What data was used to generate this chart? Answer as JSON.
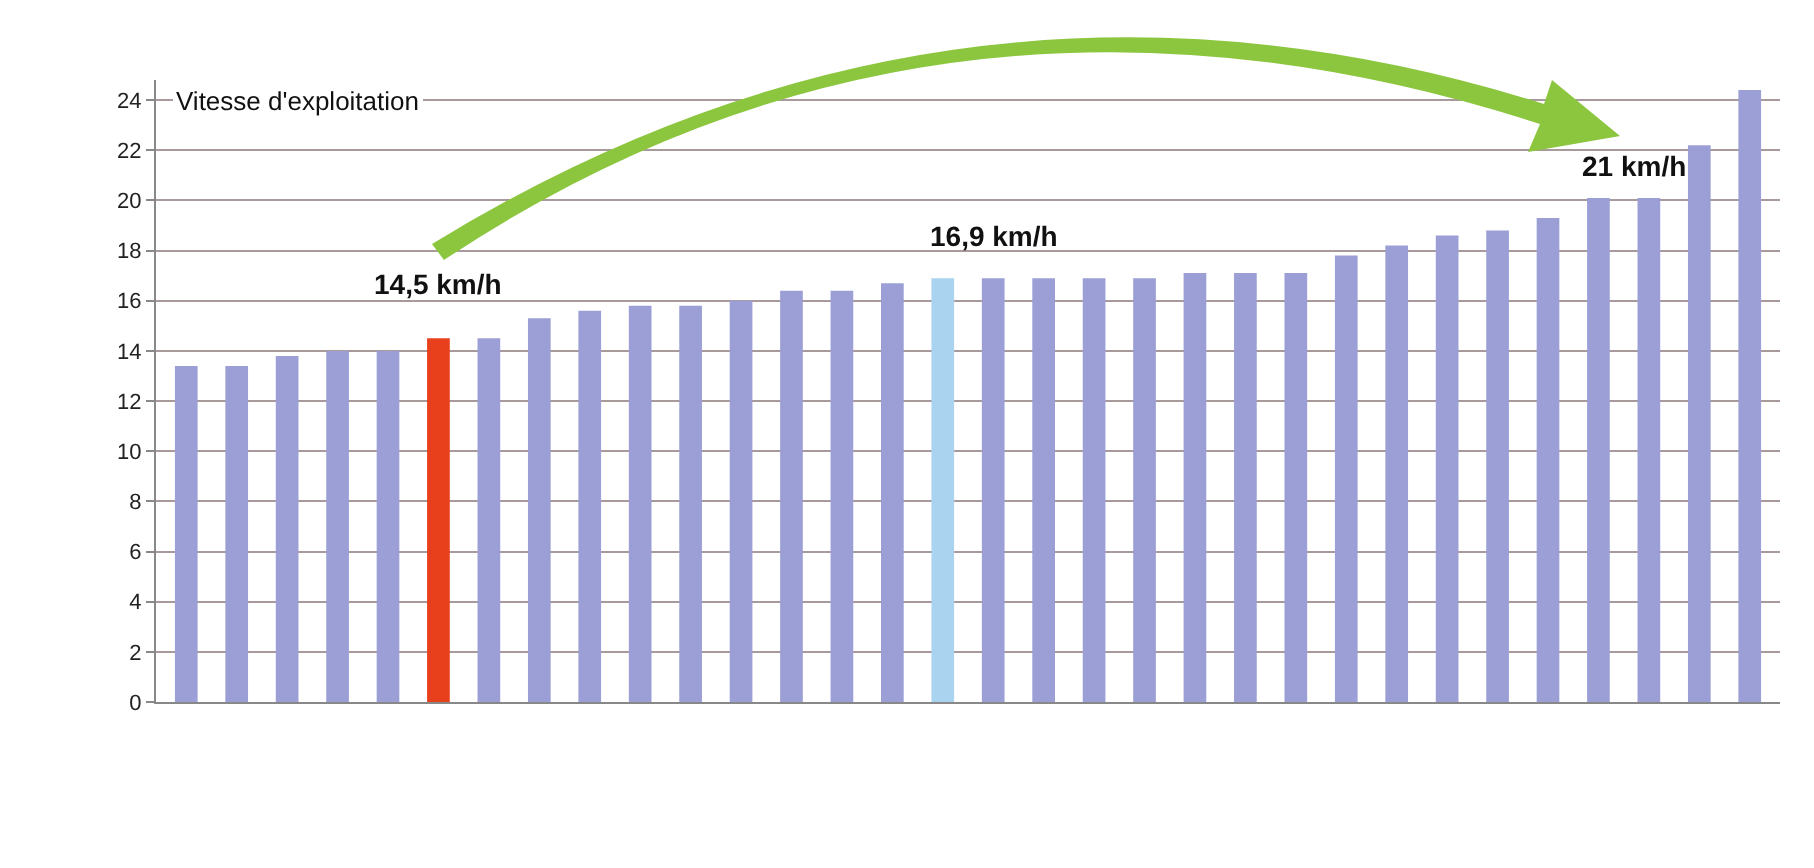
{
  "chart_data": {
    "type": "bar",
    "categories": [
      null,
      null,
      null,
      null,
      null,
      null,
      null,
      null,
      null,
      null,
      null,
      null,
      null,
      null,
      null,
      null,
      null,
      null,
      null,
      null,
      null,
      null,
      null,
      null,
      null,
      null,
      null,
      null,
      null,
      null,
      null,
      null
    ],
    "values": [
      13.4,
      13.4,
      13.8,
      14,
      14,
      14.5,
      14.5,
      15.3,
      15.6,
      15.8,
      15.8,
      16,
      16.4,
      16.4,
      16.7,
      16.9,
      16.9,
      16.9,
      16.9,
      16.9,
      17.1,
      17.1,
      17.1,
      17.8,
      18.2,
      18.6,
      18.8,
      19.3,
      20.1,
      20.1,
      22.2,
      24.4
    ],
    "colors": [
      "#9b9fd6",
      "#9b9fd6",
      "#9b9fd6",
      "#9b9fd6",
      "#9b9fd6",
      "#e8401c",
      "#9b9fd6",
      "#9b9fd6",
      "#9b9fd6",
      "#9b9fd6",
      "#9b9fd6",
      "#9b9fd6",
      "#9b9fd6",
      "#9b9fd6",
      "#9b9fd6",
      "#a9d3ef",
      "#9b9fd6",
      "#9b9fd6",
      "#9b9fd6",
      "#9b9fd6",
      "#9b9fd6",
      "#9b9fd6",
      "#9b9fd6",
      "#9b9fd6",
      "#9b9fd6",
      "#9b9fd6",
      "#9b9fd6",
      "#9b9fd6",
      "#9b9fd6",
      "#9b9fd6",
      "#9b9fd6",
      "#9b9fd6"
    ],
    "ylim": [
      0,
      24.8
    ],
    "yticks": [
      0,
      2,
      4,
      6,
      8,
      10,
      12,
      14,
      16,
      18,
      20,
      22,
      24
    ],
    "grid": "y",
    "legend": false,
    "annotations": [
      "Vitesse d'exploitation",
      "14,5 km/h",
      "16,9 km/h",
      "21 km/h"
    ]
  }
}
